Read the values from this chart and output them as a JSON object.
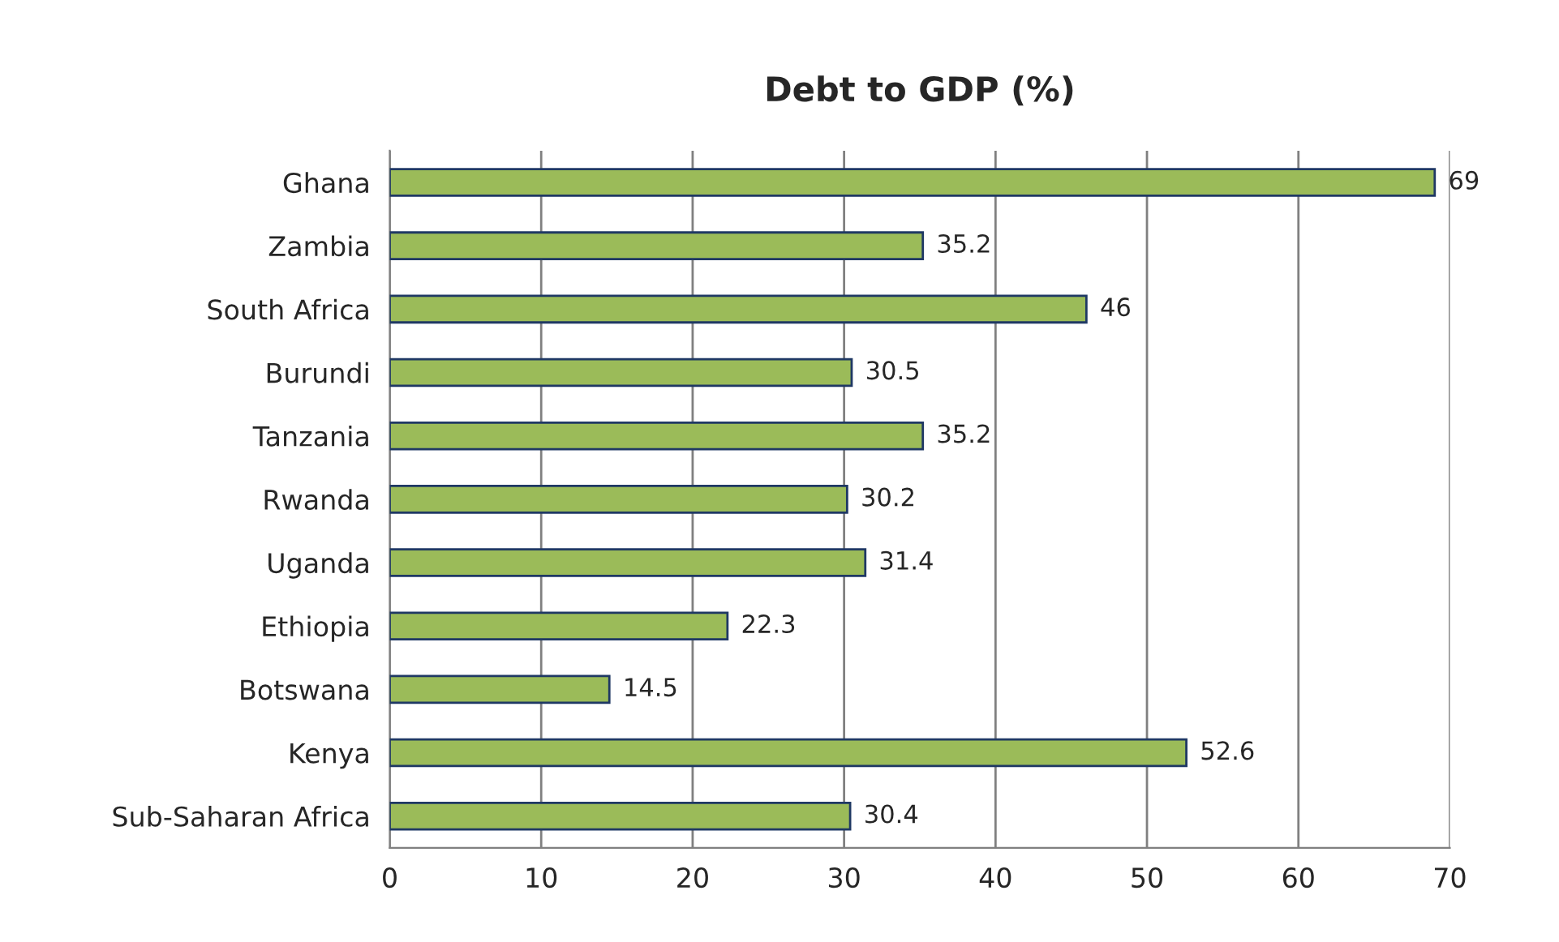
{
  "chart_data": {
    "type": "bar",
    "orientation": "horizontal",
    "title": "Debt to GDP (%)",
    "categories": [
      "Ghana",
      "Zambia",
      "South Africa",
      "Burundi",
      "Tanzania",
      "Rwanda",
      "Uganda",
      "Ethiopia",
      "Botswana",
      "Kenya",
      "Sub-Saharan Africa"
    ],
    "values": [
      69,
      35.2,
      46,
      30.5,
      35.2,
      30.2,
      31.4,
      22.3,
      14.5,
      52.6,
      30.4
    ],
    "color": "#9bbb59",
    "xlim": [
      0,
      70
    ],
    "xticks": [
      0,
      10,
      20,
      30,
      40,
      50,
      60,
      70
    ],
    "grid": "x",
    "data_labels": true,
    "legend": false
  }
}
